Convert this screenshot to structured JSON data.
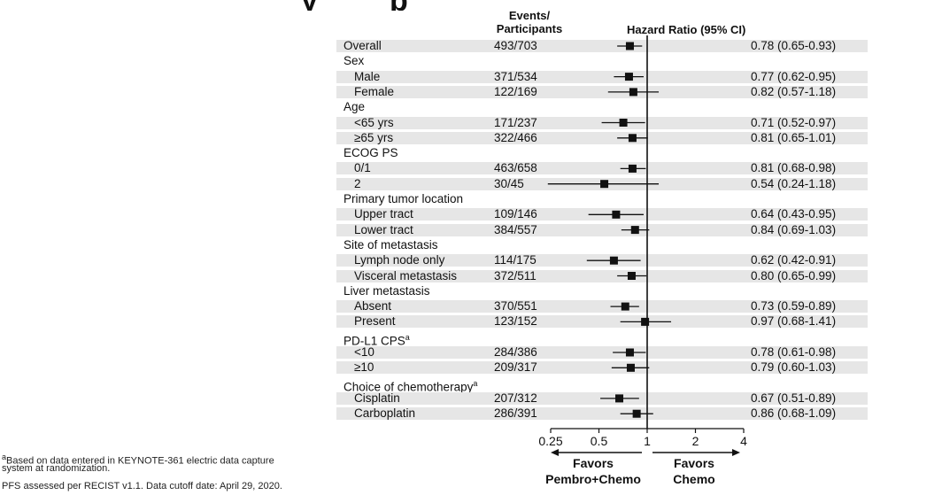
{
  "title_fragment": "y",
  "title_fragment2": "p",
  "headers": {
    "events_line1": "Events/",
    "events_line2": "Participants",
    "hr": "Hazard Ratio (95% CI)"
  },
  "footnotes": {
    "line1": "aBased on data entered in KEYNOTE-361 electric data capture",
    "line2": "system at randomization.",
    "line3": "PFS assessed per RECIST v1.1. Data cutoff date: April 29, 2020."
  },
  "chart_data": {
    "type": "forest",
    "xlabel_left": "Favors\nPembro+Chemo",
    "xlabel_right": "Favors\nChemo",
    "x_scale": "log",
    "xlim": [
      0.25,
      4
    ],
    "ticks": [
      "0.25",
      "0.5",
      "1",
      "2",
      "4"
    ],
    "reference_line": 1,
    "rows": [
      {
        "label": "Overall",
        "level": 0,
        "count": "493/703",
        "hr": 0.78,
        "lo": 0.65,
        "hi": 0.93,
        "ci_text": "0.78 (0.65-0.93)"
      },
      {
        "label": "Sex",
        "level": 0,
        "header": true
      },
      {
        "label": "Male",
        "level": 1,
        "count": "371/534",
        "hr": 0.77,
        "lo": 0.62,
        "hi": 0.95,
        "ci_text": "0.77 (0.62-0.95)"
      },
      {
        "label": "Female",
        "level": 1,
        "count": "122/169",
        "hr": 0.82,
        "lo": 0.57,
        "hi": 1.18,
        "ci_text": "0.82 (0.57-1.18)"
      },
      {
        "label": "Age",
        "level": 0,
        "header": true
      },
      {
        "label": "<65 yrs",
        "level": 1,
        "count": "171/237",
        "hr": 0.71,
        "lo": 0.52,
        "hi": 0.97,
        "ci_text": "0.71 (0.52-0.97)"
      },
      {
        "label": "≥65 yrs",
        "level": 1,
        "count": "322/466",
        "hr": 0.81,
        "lo": 0.65,
        "hi": 1.01,
        "ci_text": "0.81 (0.65-1.01)"
      },
      {
        "label": "ECOG PS",
        "level": 0,
        "header": true
      },
      {
        "label": "0/1",
        "level": 1,
        "count": "463/658",
        "hr": 0.81,
        "lo": 0.68,
        "hi": 0.98,
        "ci_text": "0.81 (0.68-0.98)"
      },
      {
        "label": "2",
        "level": 1,
        "count": "30/45",
        "hr": 0.54,
        "lo": 0.24,
        "hi": 1.18,
        "ci_text": "0.54 (0.24-1.18)"
      },
      {
        "label": "Primary tumor location",
        "level": 0,
        "header": true
      },
      {
        "label": "Upper tract",
        "level": 1,
        "count": "109/146",
        "hr": 0.64,
        "lo": 0.43,
        "hi": 0.95,
        "ci_text": "0.64 (0.43-0.95)"
      },
      {
        "label": "Lower tract",
        "level": 1,
        "count": "384/557",
        "hr": 0.84,
        "lo": 0.69,
        "hi": 1.03,
        "ci_text": "0.84 (0.69-1.03)"
      },
      {
        "label": "Site of metastasis",
        "level": 0,
        "header": true
      },
      {
        "label": "Lymph node only",
        "level": 1,
        "count": "114/175",
        "hr": 0.62,
        "lo": 0.42,
        "hi": 0.91,
        "ci_text": "0.62 (0.42-0.91)"
      },
      {
        "label": "Visceral metastasis",
        "level": 1,
        "count": "372/511",
        "hr": 0.8,
        "lo": 0.65,
        "hi": 0.99,
        "ci_text": "0.80 (0.65-0.99)"
      },
      {
        "label": "Liver metastasis",
        "level": 0,
        "header": true
      },
      {
        "label": "Absent",
        "level": 1,
        "count": "370/551",
        "hr": 0.73,
        "lo": 0.59,
        "hi": 0.89,
        "ci_text": "0.73 (0.59-0.89)"
      },
      {
        "label": "Present",
        "level": 1,
        "count": "123/152",
        "hr": 0.97,
        "lo": 0.68,
        "hi": 1.41,
        "ci_text": "0.97 (0.68-1.41)"
      },
      {
        "label": "PD-L1 CPS",
        "sup": "a",
        "level": 0,
        "header": true
      },
      {
        "label": "<10",
        "level": 1,
        "count": "284/386",
        "hr": 0.78,
        "lo": 0.61,
        "hi": 0.98,
        "ci_text": "0.78 (0.61-0.98)"
      },
      {
        "label": "≥10",
        "level": 1,
        "count": "209/317",
        "hr": 0.79,
        "lo": 0.6,
        "hi": 1.03,
        "ci_text": "0.79 (0.60-1.03)"
      },
      {
        "label": "Choice of chemotherapy",
        "sup": "a",
        "level": 0,
        "header": true
      },
      {
        "label": "Cisplatin",
        "level": 1,
        "count": "207/312",
        "hr": 0.67,
        "lo": 0.51,
        "hi": 0.89,
        "ci_text": "0.67 (0.51-0.89)"
      },
      {
        "label": "Carboplatin",
        "level": 1,
        "count": "286/391",
        "hr": 0.86,
        "lo": 0.68,
        "hi": 1.09,
        "ci_text": "0.86 (0.68-1.09)"
      }
    ]
  }
}
